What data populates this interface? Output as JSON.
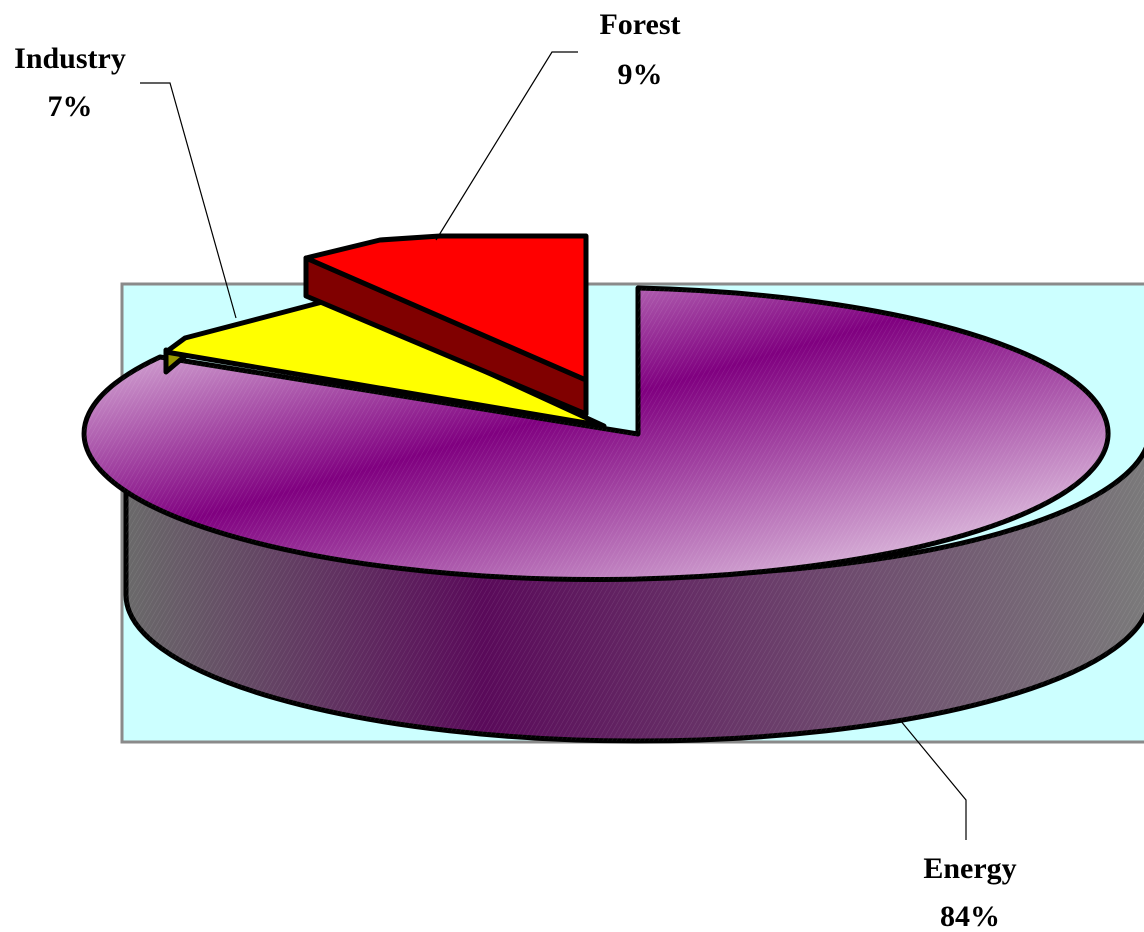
{
  "chart_data": {
    "type": "pie",
    "title": "",
    "style": "3d-exploded",
    "slices": [
      {
        "label": "Energy",
        "value": 84,
        "value_label": "84%",
        "color": "#800080"
      },
      {
        "label": "Industry",
        "value": 7,
        "value_label": "7%",
        "color": "#ffff00"
      },
      {
        "label": "Forest",
        "value": 9,
        "value_label": "9%",
        "color": "#ff0000"
      }
    ],
    "plot_area_color": "#ccffff",
    "legend": "none"
  }
}
